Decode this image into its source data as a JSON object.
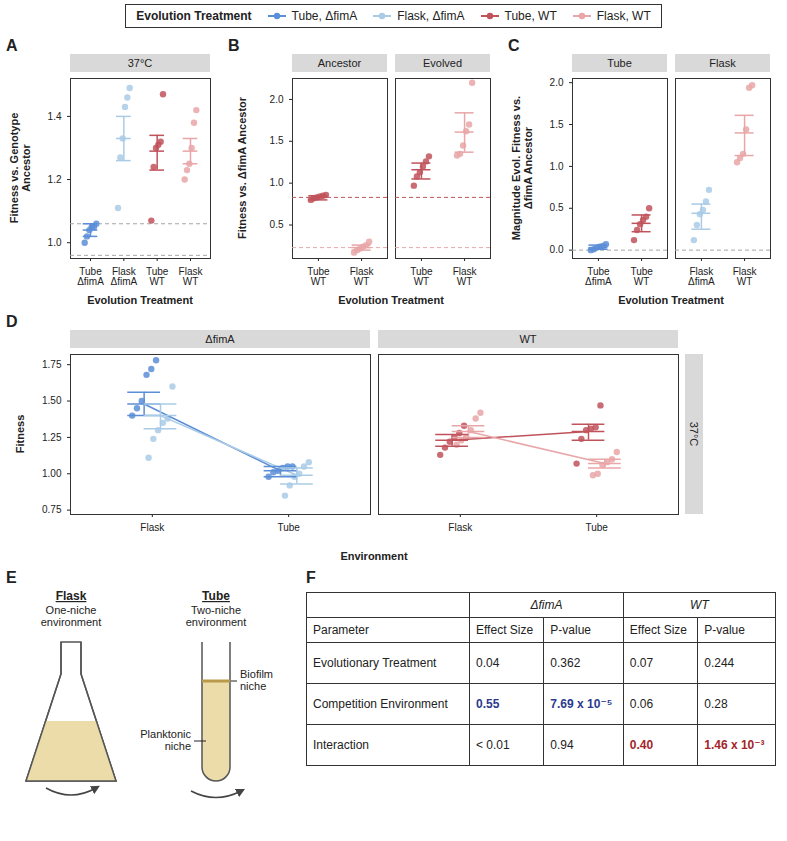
{
  "shared_legend": {
    "title": "Evolution Treatment",
    "series": [
      {
        "name": "Tube, ΔfimA",
        "color": "#5b8ed6"
      },
      {
        "name": "Flask, ΔfimA",
        "color": "#a9cbe6"
      },
      {
        "name": "Tube, WT",
        "color": "#c0525b"
      },
      {
        "name": "Flask, WT",
        "color": "#e9a6a8"
      }
    ]
  },
  "chart_data": [
    {
      "title": "A",
      "type": "scatter",
      "x_label": "Evolution Treatment",
      "y_label": "Fitness vs. Genotype Ancestor",
      "ylim": [
        0.95,
        1.52
      ],
      "yticks": [
        {
          "value": 1,
          "label": "1.0"
        },
        1.2,
        1.4
      ],
      "reference_lines": [
        {
          "value": 0.96,
          "color": "#a6a6a6"
        },
        {
          "value": 1.06,
          "color": "#a6a6a6"
        }
      ],
      "facets": [
        {
          "title": "37°C",
          "categories": [
            "Tube ΔfimA",
            "Flask ΔfimA",
            "Tube WT",
            "Flask WT"
          ],
          "groups": [
            {
              "series": "Tube, ΔfimA",
              "category": "Tube ΔfimA",
              "values": [
                1.0,
                1.02,
                1.04,
                1.05,
                1.05,
                1.06
              ],
              "mean": 1.04,
              "error_low": 1.02,
              "error_high": 1.06
            },
            {
              "series": "Flask, ΔfimA",
              "category": "Flask ΔfimA",
              "values": [
                1.11,
                1.27,
                1.33,
                1.43,
                1.46,
                1.49
              ],
              "mean": 1.33,
              "error_low": 1.26,
              "error_high": 1.4
            },
            {
              "series": "Tube, WT",
              "category": "Tube WT",
              "values": [
                1.07,
                1.24,
                1.3,
                1.31,
                1.32,
                1.47
              ],
              "mean": 1.29,
              "error_low": 1.23,
              "error_high": 1.34
            },
            {
              "series": "Flask, WT",
              "category": "Flask WT",
              "values": [
                1.2,
                1.23,
                1.25,
                1.3,
                1.38,
                1.42
              ],
              "mean": 1.29,
              "error_low": 1.25,
              "error_high": 1.33
            }
          ]
        }
      ]
    },
    {
      "title": "B",
      "type": "scatter",
      "x_label": "Evolution Treatment",
      "y_label": "Fitness vs. ΔfimA Ancestor",
      "ylim": [
        0.1,
        2.25
      ],
      "yticks": [
        0.5,
        {
          "value": 1,
          "label": "1.0"
        },
        1.5,
        {
          "value": 2,
          "label": "2.0"
        }
      ],
      "reference_lines": [
        {
          "value": 0.83,
          "color": "#c0525b"
        },
        {
          "value": 0.23,
          "color": "#e9a6a8"
        }
      ],
      "facets": [
        {
          "title": "Ancestor",
          "categories": [
            "Tube WT",
            "Flask WT"
          ],
          "groups": [
            {
              "series": "Tube, WT",
              "category": "Tube WT",
              "values": [
                0.8,
                0.82,
                0.83,
                0.84,
                0.85,
                0.86
              ],
              "mean": 0.83,
              "error_low": 0.8,
              "error_high": 0.85
            },
            {
              "series": "Flask, WT",
              "category": "Flask WT",
              "values": [
                0.17,
                0.2,
                0.22,
                0.24,
                0.26,
                0.3
              ],
              "mean": 0.23,
              "error_low": 0.2,
              "error_high": 0.26
            }
          ]
        },
        {
          "title": "Evolved",
          "categories": [
            "Tube WT",
            "Flask WT"
          ],
          "groups": [
            {
              "series": "Tube, WT",
              "category": "Tube WT",
              "values": [
                0.97,
                1.08,
                1.13,
                1.2,
                1.26,
                1.32
              ],
              "mean": 1.16,
              "error_low": 1.05,
              "error_high": 1.24
            },
            {
              "series": "Flask, WT",
              "category": "Flask WT",
              "values": [
                1.33,
                1.35,
                1.45,
                1.62,
                1.7,
                2.2
              ],
              "mean": 1.61,
              "error_low": 1.37,
              "error_high": 1.84
            }
          ]
        }
      ]
    },
    {
      "title": "C",
      "type": "scatter",
      "x_label": "Evolution Treatment",
      "y_label": "Magnitude Evol. Fitness vs. ΔfimA Ancestor",
      "ylim": [
        -0.1,
        2.05
      ],
      "yticks": [
        {
          "value": 0,
          "label": "0.0"
        },
        0.5,
        {
          "value": 1,
          "label": "1.0"
        },
        1.5,
        {
          "value": 2,
          "label": "2.0"
        }
      ],
      "reference_lines": [
        {
          "value": 0,
          "color": "#a6a6a6"
        }
      ],
      "facets": [
        {
          "title": "Tube",
          "categories": [
            "Tube ΔfimA",
            "Tube WT"
          ],
          "groups": [
            {
              "series": "Tube, ΔfimA",
              "category": "Tube ΔfimA",
              "values": [
                0.0,
                0.01,
                0.03,
                0.04,
                0.05,
                0.07
              ],
              "mean": 0.03,
              "error_low": 0.01,
              "error_high": 0.06
            },
            {
              "series": "Tube, WT",
              "category": "Tube WT",
              "values": [
                0.12,
                0.24,
                0.31,
                0.36,
                0.4,
                0.5
              ],
              "mean": 0.32,
              "error_low": 0.22,
              "error_high": 0.42
            }
          ]
        },
        {
          "title": "Flask",
          "categories": [
            "Flask ΔfimA",
            "Flask WT"
          ],
          "groups": [
            {
              "series": "Flask, ΔfimA",
              "category": "Flask ΔfimA",
              "values": [
                0.12,
                0.3,
                0.43,
                0.48,
                0.58,
                0.72
              ],
              "mean": 0.44,
              "error_low": 0.25,
              "error_high": 0.55
            },
            {
              "series": "Flask, WT",
              "category": "Flask WT",
              "values": [
                1.05,
                1.1,
                1.15,
                1.44,
                1.94,
                1.97
              ],
              "mean": 1.4,
              "error_low": 1.13,
              "error_high": 1.61
            }
          ]
        }
      ]
    },
    {
      "title": "D",
      "type": "line",
      "x_label": "Environment",
      "y_label": "Fitness",
      "row_label": "37°C",
      "categories": [
        "Flask",
        "Tube"
      ],
      "ylim": [
        0.72,
        1.82
      ],
      "yticks": [
        0.75,
        {
          "value": 1,
          "label": "1.00"
        },
        1.25,
        {
          "value": 1.5,
          "label": "1.50"
        },
        1.75
      ],
      "facets": [
        {
          "title": "ΔfimA",
          "series": [
            {
              "name": "Tube, ΔfimA",
              "points": [
                [
                  1.4,
                  1.45,
                  1.5,
                  1.68,
                  1.72,
                  1.78
                ],
                [
                  0.98,
                  1.01,
                  1.02,
                  1.04,
                  1.05,
                  1.05
                ]
              ],
              "mean": [
                1.48,
                1.02
              ],
              "error_low": [
                1.4,
                0.98
              ],
              "error_high": [
                1.56,
                1.05
              ]
            },
            {
              "name": "Flask, ΔfimA",
              "points": [
                [
                  1.11,
                  1.24,
                  1.3,
                  1.35,
                  1.38,
                  1.6
                ],
                [
                  0.85,
                  0.92,
                  0.98,
                  1.0,
                  1.05,
                  1.08
                ]
              ],
              "mean": [
                1.4,
                0.99
              ],
              "error_low": [
                1.31,
                0.93
              ],
              "error_high": [
                1.48,
                1.04
              ]
            }
          ]
        },
        {
          "title": "WT",
          "series": [
            {
              "name": "Tube, WT",
              "points": [
                [
                  1.13,
                  1.18,
                  1.22,
                  1.25,
                  1.28,
                  1.33
                ],
                [
                  1.07,
                  1.24,
                  1.3,
                  1.31,
                  1.32,
                  1.47
                ]
              ],
              "mean": [
                1.23,
                1.29
              ],
              "error_low": [
                1.19,
                1.23
              ],
              "error_high": [
                1.27,
                1.34
              ]
            },
            {
              "name": "Flask, WT",
              "points": [
                [
                  1.2,
                  1.23,
                  1.25,
                  1.3,
                  1.38,
                  1.42
                ],
                [
                  0.99,
                  1.0,
                  1.06,
                  1.08,
                  1.1,
                  1.15
                ]
              ],
              "mean": [
                1.29,
                1.07
              ],
              "error_low": [
                1.25,
                1.04
              ],
              "error_high": [
                1.33,
                1.1
              ]
            }
          ]
        }
      ]
    }
  ],
  "diagram": {
    "title": "E",
    "flask": {
      "title": "Flask",
      "subtitle": "One-niche environment"
    },
    "tube": {
      "title": "Tube",
      "subtitle": "Two-niche environment"
    },
    "labels": {
      "biofilm": "Biofilm niche",
      "planktonic": "Planktonic niche"
    }
  },
  "table": {
    "title": "F",
    "group_headers": [
      "ΔfimA",
      "WT"
    ],
    "columns": [
      "Parameter",
      "Effect Size",
      "P-value",
      "Effect Size",
      "P-value"
    ],
    "rows": [
      [
        "Evolutionary Treatment",
        "0.04",
        "0.362",
        "0.07",
        "0.244"
      ],
      [
        "Competition Environment",
        {
          "text": "0.55",
          "color": "#2b3a8f",
          "bold": true
        },
        {
          "text": "7.69 x 10⁻⁵",
          "color": "#2b3a8f",
          "bold": true
        },
        "0.06",
        "0.28"
      ],
      [
        "Interaction",
        "< 0.01",
        "0.94",
        {
          "text": "0.40",
          "color": "#a3252b",
          "bold": true
        },
        {
          "text": "1.46 x 10⁻³",
          "color": "#a3252b",
          "bold": true
        }
      ]
    ]
  }
}
